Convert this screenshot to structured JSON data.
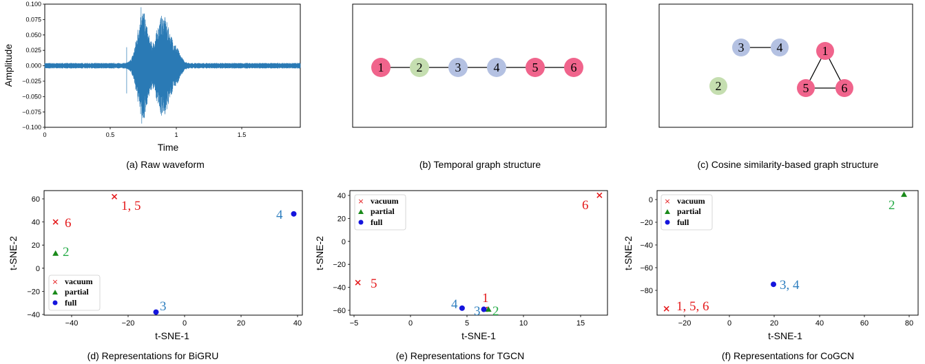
{
  "colors": {
    "vacuum": "#e41a1c",
    "partial": "#1a8a1a",
    "full": "#1515dd",
    "wave": "#2a7ab5",
    "node_pink": "#f0648c",
    "node_green": "#c5deb0",
    "node_blue": "#b4c1e2",
    "ann_vacuum": "#e41a1c",
    "ann_partial": "#22aa44",
    "ann_full": "#2f7fbf"
  },
  "panels": {
    "a": {
      "caption": "(a) Raw waveform",
      "ylabel": "Amplitude",
      "xlabel": "Time",
      "yticks": [
        "0.100",
        "0.075",
        "0.050",
        "0.025",
        "0.000",
        "−0.025",
        "−0.050",
        "−0.075",
        "−0.100"
      ],
      "xticks": [
        "0",
        "0.5",
        "1",
        "1.5"
      ]
    },
    "b": {
      "caption": "(b) Temporal graph structure",
      "nodes": [
        "1",
        "2",
        "3",
        "4",
        "5",
        "6"
      ]
    },
    "c": {
      "caption": "(c) Cosine similarity-based graph structure",
      "nodes": [
        "1",
        "2",
        "3",
        "4",
        "5",
        "6"
      ]
    },
    "d": {
      "caption": "(d) Representations for BiGRU",
      "xlabel": "t-SNE-1",
      "ylabel": "t-SNE-2",
      "xticks": [
        "−40",
        "−20",
        "0",
        "20",
        "40"
      ],
      "yticks": [
        "60",
        "40",
        "20",
        "0",
        "−20",
        "−40"
      ],
      "legend": [
        "vacuum",
        "partial",
        "full"
      ],
      "annotations": [
        "1, 5",
        "6",
        "2",
        "4",
        "3"
      ]
    },
    "e": {
      "caption": "(e) Representations for TGCN",
      "xlabel": "t-SNE-1",
      "ylabel": "t-SNE-2",
      "xticks": [
        "−5",
        "0",
        "5",
        "10",
        "15"
      ],
      "yticks": [
        "40",
        "20",
        "0",
        "−20",
        "−40",
        "−60"
      ],
      "legend": [
        "vacuum",
        "partial",
        "full"
      ],
      "annotations": [
        "6",
        "5",
        "1",
        "4",
        "3",
        "2"
      ]
    },
    "f": {
      "caption": "(f) Representations for CoGCN",
      "xlabel": "t-SNE-1",
      "ylabel": "t-SNE-2",
      "xticks": [
        "−20",
        "0",
        "20",
        "40",
        "60",
        "80"
      ],
      "yticks": [
        "0",
        "−20",
        "−40",
        "−60",
        "−80"
      ],
      "legend": [
        "vacuum",
        "partial",
        "full"
      ],
      "annotations": [
        "2",
        "3, 4",
        "1, 5, 6"
      ]
    }
  },
  "chart_data": [
    {
      "type": "line",
      "panel": "a",
      "title": "",
      "xlabel": "Time",
      "ylabel": "Amplitude",
      "xlim": [
        0,
        1.95
      ],
      "ylim": [
        -0.1,
        0.1
      ],
      "description_values": {
        "note": "raw audio waveform; burst of high amplitude between 0.65 and 1.05",
        "peak_max": 0.095,
        "peak_min": -0.094
      }
    },
    {
      "type": "scatter",
      "panel": "d",
      "xlim": [
        -50,
        40
      ],
      "ylim": [
        -55,
        68
      ],
      "series": [
        {
          "name": "vacuum",
          "points": [
            [
              -25.5,
              62
            ],
            [
              -46,
              37
            ]
          ],
          "labels": [
            "1, 5",
            "6"
          ]
        },
        {
          "name": "partial",
          "points": [
            [
              -46,
              6
            ]
          ],
          "labels": [
            "2"
          ]
        },
        {
          "name": "full",
          "points": [
            [
              37,
              45
            ],
            [
              -11,
              -52
            ]
          ],
          "labels": [
            "4",
            "3"
          ]
        }
      ]
    },
    {
      "type": "scatter",
      "panel": "e",
      "xlim": [
        -5,
        17.5
      ],
      "ylim": [
        -65,
        42
      ],
      "series": [
        {
          "name": "vacuum",
          "points": [
            [
              16.8,
              38
            ],
            [
              -4.3,
              -37
            ],
            [
              6.8,
              -60
            ]
          ],
          "labels": [
            "6",
            "5",
            "1"
          ]
        },
        {
          "name": "partial",
          "points": [
            [
              7.1,
              -60
            ]
          ],
          "labels": [
            "2"
          ]
        },
        {
          "name": "full",
          "points": [
            [
              4.8,
              -59
            ],
            [
              6.7,
              -60
            ]
          ],
          "labels": [
            "4",
            "3"
          ]
        }
      ]
    },
    {
      "type": "scatter",
      "panel": "f",
      "xlim": [
        -29,
        82
      ],
      "ylim": [
        -92,
        5
      ],
      "series": [
        {
          "name": "vacuum",
          "points": [
            [
              -25,
              -87
            ]
          ],
          "labels": [
            "1, 5, 6"
          ]
        },
        {
          "name": "partial",
          "points": [
            [
              76,
              2
            ]
          ],
          "labels": [
            "2"
          ]
        },
        {
          "name": "full",
          "points": [
            [
              20.5,
              -68
            ]
          ],
          "labels": [
            "3, 4"
          ]
        }
      ]
    }
  ]
}
